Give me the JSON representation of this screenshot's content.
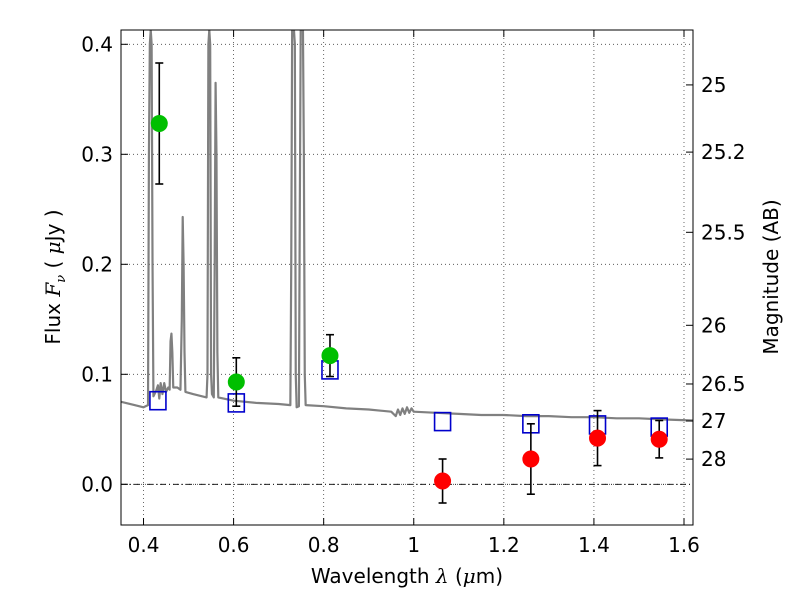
{
  "chart_data": {
    "type": "scatter",
    "title": "",
    "xlabel_parts": [
      "Wavelength  ",
      "λ",
      " (",
      "μ",
      "m)"
    ],
    "ylabel_parts": [
      "Flux  ",
      "F",
      "ν",
      "  ( ",
      "μ",
      "Jy )"
    ],
    "y2label": "Magnitude (AB)",
    "xlim": [
      0.35,
      1.62
    ],
    "ylim": [
      -0.037,
      0.413
    ],
    "grid": true,
    "x_ticks": [
      0.4,
      0.6,
      0.8,
      1.0,
      1.2,
      1.4,
      1.6
    ],
    "x_tick_labels": [
      "0.4",
      "0.6",
      "0.8",
      "1",
      "1.2",
      "1.4",
      "1.6"
    ],
    "y_ticks": [
      0.0,
      0.1,
      0.2,
      0.3,
      0.4
    ],
    "y_tick_labels": [
      "0.0",
      "0.1",
      "0.2",
      "0.3",
      "0.4"
    ],
    "y2_ticks": [
      {
        "label": "25",
        "mag": 25.0
      },
      {
        "label": "25.2",
        "mag": 25.2
      },
      {
        "label": "25.5",
        "mag": 25.5
      },
      {
        "label": "26",
        "mag": 26.0
      },
      {
        "label": "26.5",
        "mag": 26.5
      },
      {
        "label": "27",
        "mag": 27.0
      },
      {
        "label": "28",
        "mag": 28.0
      }
    ],
    "zero_line": 0.0,
    "series": [
      {
        "kind": "points",
        "marker": "circle",
        "color": "#00bf00",
        "points": [
          {
            "x": 0.435,
            "y": 0.328,
            "err": 0.055
          },
          {
            "x": 0.606,
            "y": 0.093,
            "err": 0.022
          },
          {
            "x": 0.814,
            "y": 0.117,
            "err": 0.019
          }
        ]
      },
      {
        "kind": "points",
        "marker": "circle",
        "color": "#ff0000",
        "points": [
          {
            "x": 1.064,
            "y": 0.003,
            "err": 0.02
          },
          {
            "x": 1.26,
            "y": 0.023,
            "err": 0.032
          },
          {
            "x": 1.408,
            "y": 0.042,
            "err": 0.025
          },
          {
            "x": 1.545,
            "y": 0.041,
            "err": 0.017
          }
        ]
      },
      {
        "kind": "points",
        "marker": "square",
        "color": "#0000cc",
        "points": [
          {
            "x": 0.432,
            "y": 0.076
          },
          {
            "x": 0.606,
            "y": 0.074
          },
          {
            "x": 0.814,
            "y": 0.104
          },
          {
            "x": 1.064,
            "y": 0.057
          },
          {
            "x": 1.26,
            "y": 0.055
          },
          {
            "x": 1.408,
            "y": 0.054
          },
          {
            "x": 1.545,
            "y": 0.052
          }
        ]
      },
      {
        "kind": "line",
        "color": "#808080",
        "points": [
          [
            0.35,
            0.075
          ],
          [
            0.38,
            0.072
          ],
          [
            0.4,
            0.07
          ],
          [
            0.41,
            0.072
          ],
          [
            0.412,
            0.3
          ],
          [
            0.414,
            0.4
          ],
          [
            0.416,
            0.413
          ],
          [
            0.418,
            0.4
          ],
          [
            0.42,
            0.2
          ],
          [
            0.422,
            0.08
          ],
          [
            0.428,
            0.085
          ],
          [
            0.432,
            0.09
          ],
          [
            0.435,
            0.078
          ],
          [
            0.438,
            0.092
          ],
          [
            0.442,
            0.082
          ],
          [
            0.446,
            0.092
          ],
          [
            0.45,
            0.084
          ],
          [
            0.455,
            0.088
          ],
          [
            0.458,
            0.086
          ],
          [
            0.46,
            0.13
          ],
          [
            0.462,
            0.137
          ],
          [
            0.464,
            0.12
          ],
          [
            0.466,
            0.088
          ],
          [
            0.475,
            0.088
          ],
          [
            0.482,
            0.086
          ],
          [
            0.485,
            0.15
          ],
          [
            0.487,
            0.243
          ],
          [
            0.489,
            0.2
          ],
          [
            0.491,
            0.12
          ],
          [
            0.493,
            0.084
          ],
          [
            0.51,
            0.082
          ],
          [
            0.53,
            0.08
          ],
          [
            0.54,
            0.079
          ],
          [
            0.542,
            0.1
          ],
          [
            0.544,
            0.4
          ],
          [
            0.546,
            0.413
          ],
          [
            0.548,
            0.4
          ],
          [
            0.55,
            0.1
          ],
          [
            0.552,
            0.082
          ],
          [
            0.556,
            0.079
          ],
          [
            0.558,
            0.2
          ],
          [
            0.56,
            0.365
          ],
          [
            0.562,
            0.3
          ],
          [
            0.564,
            0.12
          ],
          [
            0.566,
            0.079
          ],
          [
            0.6,
            0.076
          ],
          [
            0.65,
            0.074
          ],
          [
            0.7,
            0.073
          ],
          [
            0.726,
            0.072
          ],
          [
            0.728,
            0.2
          ],
          [
            0.73,
            0.413
          ],
          [
            0.734,
            0.413
          ],
          [
            0.736,
            0.4
          ],
          [
            0.738,
            0.1
          ],
          [
            0.74,
            0.07
          ],
          [
            0.745,
            0.071
          ],
          [
            0.747,
            0.25
          ],
          [
            0.749,
            0.413
          ],
          [
            0.754,
            0.413
          ],
          [
            0.756,
            0.3
          ],
          [
            0.758,
            0.1
          ],
          [
            0.76,
            0.072
          ],
          [
            0.8,
            0.071
          ],
          [
            0.85,
            0.069
          ],
          [
            0.9,
            0.068
          ],
          [
            0.95,
            0.066
          ],
          [
            0.96,
            0.062
          ],
          [
            0.965,
            0.068
          ],
          [
            0.97,
            0.063
          ],
          [
            0.975,
            0.069
          ],
          [
            0.98,
            0.064
          ],
          [
            0.985,
            0.07
          ],
          [
            0.99,
            0.065
          ],
          [
            0.995,
            0.069
          ],
          [
            1.0,
            0.066
          ],
          [
            1.05,
            0.065
          ],
          [
            1.1,
            0.064
          ],
          [
            1.15,
            0.063
          ],
          [
            1.2,
            0.063
          ],
          [
            1.25,
            0.062
          ],
          [
            1.3,
            0.062
          ],
          [
            1.35,
            0.061
          ],
          [
            1.4,
            0.061
          ],
          [
            1.45,
            0.06
          ],
          [
            1.5,
            0.06
          ],
          [
            1.55,
            0.059
          ],
          [
            1.62,
            0.058
          ]
        ]
      }
    ]
  }
}
